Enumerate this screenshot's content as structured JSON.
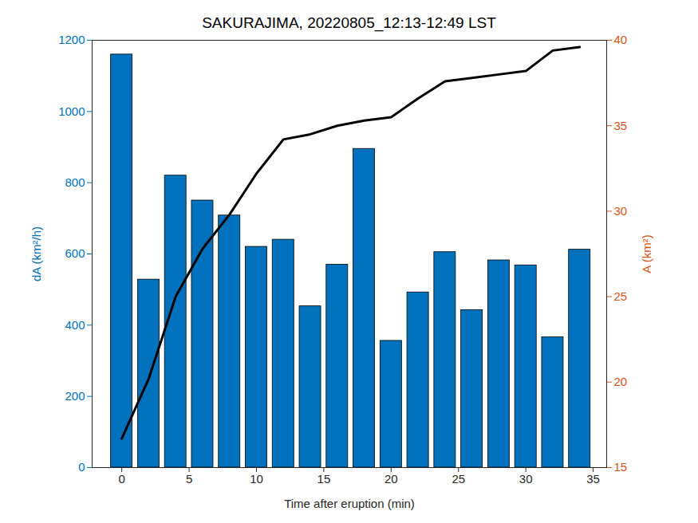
{
  "chart_data": {
    "type": "bar",
    "title": "SAKURAJIMA, 20220805_12:13-12:49 LST",
    "x_label": "Time after eruption (min)",
    "y_label": "dA (km²/h)",
    "y2_label": "A (km²)",
    "x": [
      0,
      2,
      4,
      6,
      8,
      10,
      12,
      14,
      16,
      18,
      20,
      22,
      24,
      26,
      28,
      30,
      32,
      34
    ],
    "series": [
      {
        "name": "dA",
        "type": "bar",
        "color": "#0072BD",
        "values": [
          1160,
          528,
          820,
          750,
          708,
          620,
          640,
          453,
          570,
          895,
          356,
          492,
          605,
          442,
          582,
          568,
          366,
          612
        ]
      },
      {
        "name": "A",
        "type": "line",
        "axis": "y2",
        "color": "#000000",
        "line_style": "solid",
        "values": [
          16.7,
          20.2,
          25.0,
          27.8,
          29.8,
          32.2,
          34.2,
          34.5,
          35.0,
          35.3,
          35.5,
          36.6,
          37.6,
          37.8,
          38.0,
          38.2,
          39.4,
          39.6
        ]
      }
    ],
    "xlim": [
      -2.2,
      36
    ],
    "xticks": [
      0,
      5,
      10,
      15,
      20,
      25,
      30,
      35
    ],
    "ylim": [
      0,
      1200
    ],
    "yticks": [
      0,
      200,
      400,
      600,
      800,
      1000,
      1200
    ],
    "y2lim": [
      15,
      40
    ],
    "y2ticks": [
      15,
      20,
      25,
      30,
      35,
      40
    ],
    "y_color": "#0072BD",
    "y2_color": "#D95319",
    "grid": false
  }
}
